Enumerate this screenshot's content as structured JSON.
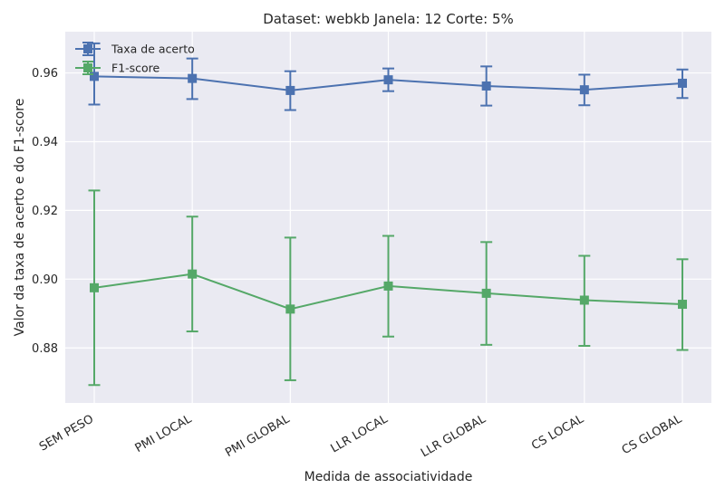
{
  "chart_data": {
    "type": "line",
    "title": "Dataset: webkb Janela: 12 Corte: 5%",
    "xlabel": "Medida de associatividade",
    "ylabel": "Valor da taxa de acerto e do F1-score",
    "categories": [
      "SEM PESO",
      "PMI LOCAL",
      "PMI GLOBAL",
      "LLR LOCAL",
      "LLR GLOBAL",
      "CS LOCAL",
      "CS GLOBAL"
    ],
    "ylim": [
      0.864,
      0.972
    ],
    "yticks": [
      0.88,
      0.9,
      0.92,
      0.94,
      0.96
    ],
    "ytick_labels": [
      "0.88",
      "0.90",
      "0.92",
      "0.94",
      "0.96"
    ],
    "grid": true,
    "legend_position": "top-left",
    "series": [
      {
        "name": "Taxa de acerto",
        "color": "#4c72b0",
        "values": [
          0.959,
          0.9584,
          0.9549,
          0.958,
          0.9562,
          0.9551,
          0.957
        ],
        "lower": [
          0.9508,
          0.9524,
          0.9492,
          0.9547,
          0.9505,
          0.9506,
          0.9527
        ],
        "upper": [
          0.9686,
          0.9642,
          0.9605,
          0.9613,
          0.9619,
          0.9595,
          0.961
        ]
      },
      {
        "name": "F1-score",
        "color": "#55a868",
        "values": [
          0.8975,
          0.9015,
          0.8913,
          0.898,
          0.8959,
          0.8939,
          0.8927
        ],
        "lower": [
          0.8692,
          0.8848,
          0.8706,
          0.8833,
          0.8809,
          0.8806,
          0.8794
        ],
        "upper": [
          0.9258,
          0.9182,
          0.9121,
          0.9126,
          0.9108,
          0.9068,
          0.9058
        ]
      }
    ]
  }
}
